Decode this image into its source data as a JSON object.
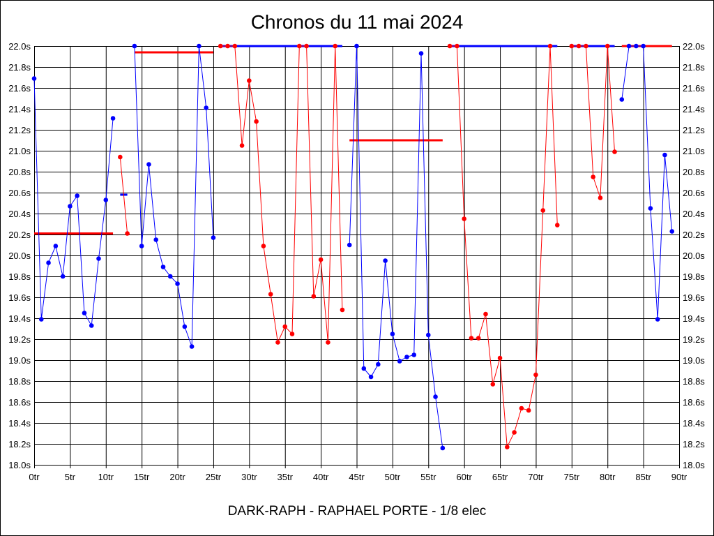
{
  "chart_data": {
    "type": "line",
    "title": "Chronos du 11 mai 2024",
    "footer": "DARK-RAPH - RAPHAEL PORTE - 1/8 elec",
    "xlabel": "",
    "ylabel": "",
    "xlim": [
      0,
      90
    ],
    "ylim": [
      18.0,
      22.0
    ],
    "grid": true,
    "y_ticks": [
      "18.0s",
      "18.2s",
      "18.4s",
      "18.6s",
      "18.8s",
      "19.0s",
      "19.2s",
      "19.4s",
      "19.6s",
      "19.8s",
      "20.0s",
      "20.2s",
      "20.4s",
      "20.6s",
      "20.8s",
      "21.0s",
      "21.2s",
      "21.4s",
      "21.6s",
      "21.8s",
      "22.0s"
    ],
    "x_ticks": [
      "0tr",
      "5tr",
      "10tr",
      "15tr",
      "20tr",
      "25tr",
      "30tr",
      "35tr",
      "40tr",
      "45tr",
      "50tr",
      "55tr",
      "60tr",
      "65tr",
      "70tr",
      "75tr",
      "80tr",
      "85tr",
      "90tr"
    ],
    "colors": {
      "blue": "#0000ff",
      "red": "#ff0000"
    },
    "series": [
      {
        "color": "#0000ff",
        "lap_start": 0,
        "values": [
          21.69,
          19.39,
          19.93,
          20.09,
          19.8,
          20.47,
          20.57,
          19.45,
          19.33,
          19.97,
          20.53,
          21.31
        ]
      },
      {
        "color": "#ff0000",
        "lap_start": 12,
        "values": [
          20.94,
          20.21
        ]
      },
      {
        "color": "#0000ff",
        "lap_start": 14,
        "values": [
          22.0,
          20.09,
          20.87,
          20.15,
          19.89,
          19.8,
          19.73,
          19.32,
          19.13,
          22.0,
          21.41,
          20.17
        ]
      },
      {
        "color": "#ff0000",
        "lap_start": 26,
        "values": [
          22.0,
          22.0,
          22.0,
          21.05,
          21.67,
          21.28,
          20.09,
          19.63,
          19.17,
          19.32,
          19.25,
          22.0,
          22.0,
          19.61,
          19.96,
          19.17,
          22.0,
          19.48
        ]
      },
      {
        "color": "#0000ff",
        "lap_start": 44,
        "values": [
          20.1,
          22.0,
          18.92,
          18.84,
          18.96,
          19.95,
          19.25,
          18.99,
          19.03,
          19.05,
          21.93,
          19.24,
          18.65,
          18.16
        ]
      },
      {
        "color": "#ff0000",
        "lap_start": 58,
        "values": [
          22.0,
          22.0,
          20.35,
          19.21,
          19.21,
          19.44,
          18.77,
          19.02,
          18.17,
          18.31,
          18.54,
          18.52,
          18.86,
          20.43,
          22.0,
          20.29
        ]
      },
      {
        "color": "#ff0000",
        "lap_start": 75,
        "values": [
          22.0,
          22.0,
          22.0,
          20.75,
          20.55,
          22.0,
          20.99
        ]
      },
      {
        "color": "#0000ff",
        "lap_start": 82,
        "values": [
          21.49,
          22.0,
          22.0,
          22.0,
          20.45,
          19.39,
          20.96,
          20.23
        ]
      }
    ],
    "segments": [
      {
        "color": "#ff0000",
        "x": [
          0,
          11
        ],
        "y": 20.21
      },
      {
        "color": "#0000ff",
        "x": [
          12,
          13
        ],
        "y": 20.58
      },
      {
        "color": "#ff0000",
        "x": [
          14,
          25
        ],
        "y": 21.94
      },
      {
        "color": "#0000ff",
        "x": [
          26,
          43
        ],
        "y": 22.0
      },
      {
        "color": "#ff0000",
        "x": [
          44,
          57
        ],
        "y": 21.1
      },
      {
        "color": "#0000ff",
        "x": [
          58,
          73
        ],
        "y": 22.0
      },
      {
        "color": "#0000ff",
        "x": [
          75,
          81
        ],
        "y": 22.0
      },
      {
        "color": "#ff0000",
        "x": [
          82,
          89
        ],
        "y": 22.0
      }
    ]
  }
}
